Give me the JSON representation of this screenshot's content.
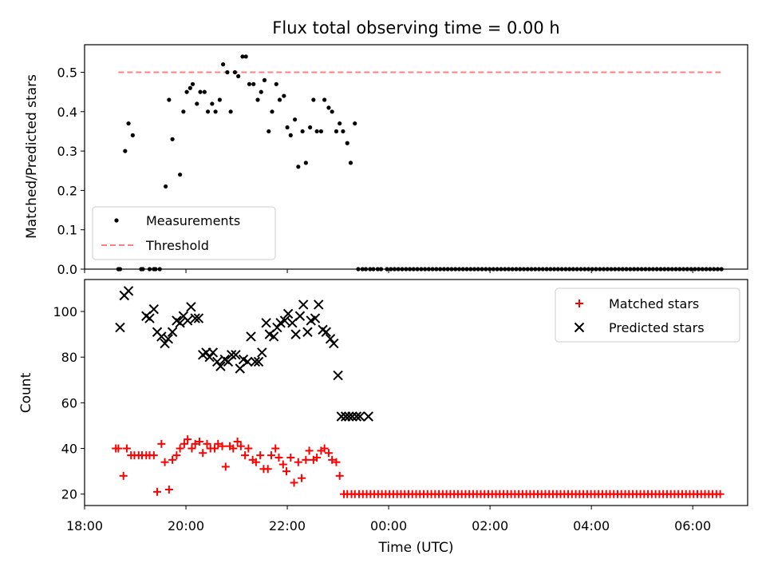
{
  "colors": {
    "measurement": "#000000",
    "threshold": "#ff7f7f",
    "matched": "#ff0000",
    "predicted": "#000000"
  },
  "chart_data": [
    {
      "type": "scatter",
      "title": "Flux total observing time = 0.00 h",
      "xlabel": "",
      "ylabel": "Matched/Predicted stars",
      "xlim": [
        "18:00",
        "07:05"
      ],
      "ylim": [
        0,
        0.57
      ],
      "yticks": [
        "0.0",
        "0.1",
        "0.2",
        "0.3",
        "0.4",
        "0.5"
      ],
      "legend": {
        "position": "lower-left",
        "entries": [
          "Measurements",
          "Threshold"
        ]
      },
      "threshold": {
        "name": "Threshold",
        "y": 0.5,
        "x_range": [
          "18:40",
          "06:35"
        ]
      },
      "series": [
        {
          "name": "Measurements",
          "x": [
            "18:40",
            "18:42",
            "18:48",
            "18:52",
            "18:57",
            "19:07",
            "19:09",
            "19:17",
            "19:22",
            "19:24",
            "19:29",
            "19:36",
            "19:40",
            "19:44",
            "19:53",
            "19:57",
            "20:01",
            "20:05",
            "20:08",
            "20:13",
            "20:17",
            "20:22",
            "20:26",
            "20:31",
            "20:35",
            "20:40",
            "20:44",
            "20:49",
            "20:53",
            "20:58",
            "21:02",
            "21:07",
            "21:11",
            "21:15",
            "21:20",
            "21:25",
            "21:29",
            "21:33",
            "21:38",
            "21:42",
            "21:47",
            "21:51",
            "21:56",
            "22:00",
            "22:04",
            "22:09",
            "22:13",
            "22:18",
            "22:22",
            "22:27",
            "22:31",
            "22:35",
            "22:40",
            "22:44",
            "22:49",
            "22:53",
            "22:58",
            "23:02",
            "23:06",
            "23:11",
            "23:15",
            "23:20",
            "23:24",
            "23:29",
            "23:33",
            "23:38",
            "23:42",
            "23:47",
            "23:51",
            "23:58"
          ],
          "y": [
            0,
            0,
            0.3,
            0.37,
            0.34,
            0,
            0,
            0,
            0,
            0,
            0,
            0.21,
            0.43,
            0.33,
            0.24,
            0.4,
            0.45,
            0.46,
            0.47,
            0.42,
            0.45,
            0.45,
            0.4,
            0.42,
            0.4,
            0.43,
            0.52,
            0.5,
            0.4,
            0.5,
            0.49,
            0.54,
            0.54,
            0.47,
            0.47,
            0.43,
            0.45,
            0.48,
            0.35,
            0.4,
            0.47,
            0.43,
            0.44,
            0.36,
            0.34,
            0.38,
            0.26,
            0.35,
            0.27,
            0.36,
            0.43,
            0.35,
            0.35,
            0.43,
            0.41,
            0.4,
            0.35,
            0.37,
            0.35,
            0.32,
            0.27,
            0.37,
            0,
            0,
            0,
            0,
            0,
            0,
            0,
            0
          ],
          "zeros_continue_until": "06:35"
        }
      ]
    },
    {
      "type": "scatter",
      "title": "",
      "xlabel": "Time (UTC)",
      "ylabel": "Count",
      "xlim": [
        "18:00",
        "07:05"
      ],
      "ylim": [
        15,
        114
      ],
      "yticks": [
        "20",
        "40",
        "60",
        "80",
        "100"
      ],
      "xticks": [
        "18:00",
        "20:00",
        "22:00",
        "00:00",
        "02:00",
        "04:00",
        "06:00"
      ],
      "legend": {
        "position": "upper-right",
        "entries": [
          "Matched stars",
          "Predicted stars"
        ]
      },
      "series": [
        {
          "name": "Matched stars",
          "marker": "plus",
          "x": [
            "18:37",
            "18:40",
            "18:46",
            "18:50",
            "18:55",
            "18:59",
            "19:04",
            "19:08",
            "19:13",
            "19:17",
            "19:22",
            "19:26",
            "19:31",
            "19:35",
            "19:40",
            "19:44",
            "19:49",
            "19:53",
            "19:58",
            "20:02",
            "20:07",
            "20:11",
            "20:16",
            "20:20",
            "20:25",
            "20:29",
            "20:34",
            "20:38",
            "20:43",
            "20:47",
            "20:52",
            "20:56",
            "21:01",
            "21:05",
            "21:10",
            "21:14",
            "21:19",
            "21:23",
            "21:28",
            "21:32",
            "21:37",
            "21:41",
            "21:46",
            "21:50",
            "21:55",
            "21:59",
            "22:04",
            "22:08",
            "22:13",
            "22:17",
            "22:22",
            "22:26",
            "22:31",
            "22:35",
            "22:40",
            "22:44",
            "22:49",
            "22:53",
            "22:58",
            "23:02",
            "23:07",
            "23:11",
            "23:16",
            "23:20",
            "23:25"
          ],
          "y": [
            40,
            40,
            28,
            40,
            37,
            37,
            37,
            37,
            37,
            37,
            37,
            21,
            42,
            34,
            22,
            35,
            37,
            40,
            42,
            44,
            40,
            42,
            43,
            38,
            42,
            40,
            40,
            42,
            41,
            32,
            41,
            40,
            43,
            41,
            37,
            40,
            35,
            34,
            37,
            31,
            31,
            37,
            40,
            36,
            33,
            30,
            36,
            25,
            34,
            27,
            35,
            39,
            35,
            36,
            39,
            40,
            38,
            35,
            34,
            28,
            20,
            20,
            20,
            20,
            20
          ],
          "constant_from": "23:25",
          "constant_until": "06:35",
          "constant_value": 20
        },
        {
          "name": "Predicted stars",
          "marker": "x",
          "x": [
            "18:42",
            "18:47",
            "18:52",
            "19:13",
            "19:17",
            "19:22",
            "19:26",
            "19:31",
            "19:35",
            "19:39",
            "19:44",
            "19:49",
            "19:53",
            "19:57",
            "20:02",
            "20:06",
            "20:11",
            "20:15",
            "20:20",
            "20:24",
            "20:28",
            "20:32",
            "20:37",
            "20:41",
            "20:46",
            "20:50",
            "20:54",
            "20:59",
            "21:04",
            "21:08",
            "21:13",
            "21:17",
            "21:22",
            "21:26",
            "21:30",
            "21:35",
            "21:39",
            "21:44",
            "21:48",
            "21:52",
            "21:57",
            "22:01",
            "22:06",
            "22:10",
            "22:15",
            "22:19",
            "22:24",
            "22:28",
            "22:33",
            "22:37",
            "22:42",
            "22:46",
            "22:51",
            "22:55",
            "23:00",
            "23:04",
            "23:09",
            "23:13",
            "23:17",
            "23:22",
            "23:26",
            "23:36"
          ],
          "y": [
            93,
            107,
            109,
            98,
            97,
            101,
            91,
            89,
            86,
            88,
            91,
            96,
            95,
            98,
            96,
            102,
            97,
            97,
            81,
            82,
            80,
            82,
            78,
            76,
            79,
            78,
            81,
            81,
            75,
            79,
            78,
            89,
            78,
            78,
            82,
            95,
            90,
            89,
            93,
            95,
            96,
            99,
            95,
            90,
            98,
            103,
            91,
            96,
            97,
            103,
            92,
            91,
            88,
            86,
            72,
            54,
            54,
            54,
            54,
            54,
            54,
            54
          ]
        }
      ]
    }
  ]
}
